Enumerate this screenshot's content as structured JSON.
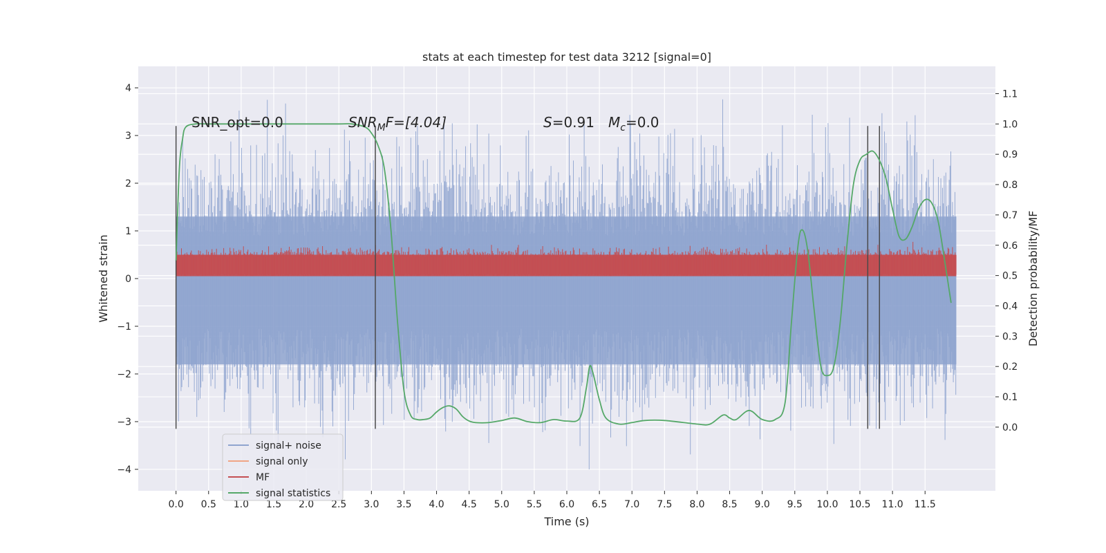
{
  "chart_data": {
    "type": "line",
    "title": "stats at each timestep for test data 3212 [signal=0]",
    "xlabel": "Time (s)",
    "ylabel_left": "Whitened strain",
    "ylabel_right": "Detection probability/MF",
    "xlim": [
      -0.58,
      12.58
    ],
    "ylim_left": [
      -4.45,
      4.45
    ],
    "ylim_right": [
      -0.21,
      1.19
    ],
    "x_ticks": [
      0.0,
      0.5,
      1.0,
      1.5,
      2.0,
      2.5,
      3.0,
      3.5,
      4.0,
      4.5,
      5.0,
      5.5,
      6.0,
      6.5,
      7.0,
      7.5,
      8.0,
      8.5,
      9.0,
      9.5,
      10.0,
      10.5,
      11.0,
      11.5
    ],
    "x_tick_labels": [
      "0.0",
      "0.5",
      "1.0",
      "1.5",
      "2.0",
      "2.5",
      "3.0",
      "3.5",
      "4.0",
      "4.5",
      "5.0",
      "5.5",
      "6.0",
      "6.5",
      "7.0",
      "7.5",
      "8.0",
      "8.5",
      "9.0",
      "9.5",
      "10.0",
      "10.5",
      "11.0",
      "11.5"
    ],
    "y_left_ticks": [
      -4,
      -3,
      -2,
      -1,
      0,
      1,
      2,
      3,
      4
    ],
    "y_left_tick_labels": [
      "−4",
      "−3",
      "−2",
      "−1",
      "0",
      "1",
      "2",
      "3",
      "4"
    ],
    "y_right_ticks": [
      0.0,
      0.1,
      0.2,
      0.3,
      0.4,
      0.5,
      0.6,
      0.7,
      0.8,
      0.9,
      1.0,
      1.1
    ],
    "y_right_tick_labels": [
      "0.0",
      "0.1",
      "0.2",
      "0.3",
      "0.4",
      "0.5",
      "0.6",
      "0.7",
      "0.8",
      "0.9",
      "1.0",
      "1.1"
    ],
    "grid": true,
    "legend_position": "lower-left",
    "legend": [
      {
        "label": "signal+ noise",
        "color": "#8fa4cf"
      },
      {
        "label": "signal only",
        "color": "#f0a584"
      },
      {
        "label": "MF",
        "color": "#c44e52"
      },
      {
        "label": "signal statistics",
        "color": "#55a868"
      }
    ],
    "annotations": {
      "snr_opt": "SNR_opt=0.0",
      "snr_mf_main": "SNR",
      "snr_mf_sub": "M",
      "snr_mf_rest": "F=[4.04]",
      "s_main": "S",
      "s_rest": "=0.91",
      "mc_main": "M",
      "mc_sub": "c",
      "mc_rest": "=0.0"
    },
    "vertical_lines": [
      {
        "x": 0.0,
        "y_from": -3.15,
        "y_to": 3.2
      },
      {
        "x": 3.06,
        "y_from": -3.15,
        "y_to": 3.2
      },
      {
        "x": 10.62,
        "y_from": -3.15,
        "y_to": 3.2
      },
      {
        "x": 10.8,
        "y_from": -3.15,
        "y_to": 3.2
      }
    ],
    "series": [
      {
        "name": "signal+ noise",
        "axis": "left",
        "color": "#8fa4cf",
        "kind": "noise",
        "x_range": [
          0.0,
          11.98
        ],
        "typical_range": [
          -2.0,
          2.0
        ],
        "extremes": [
          -4.0,
          4.1
        ]
      },
      {
        "name": "MF",
        "axis": "left",
        "color": "#c44e52",
        "kind": "band",
        "x_range": [
          0.0,
          11.98
        ],
        "typical_range": [
          0.05,
          0.65
        ],
        "extremes": [
          0.0,
          0.85
        ]
      },
      {
        "name": "signal statistics",
        "axis": "right",
        "color": "#55a868",
        "x": [
          0.0,
          0.05,
          0.1,
          0.15,
          0.3,
          0.5,
          1.0,
          1.5,
          2.0,
          2.5,
          2.7,
          2.9,
          3.0,
          3.1,
          3.2,
          3.3,
          3.4,
          3.5,
          3.6,
          3.7,
          3.8,
          3.9,
          4.0,
          4.1,
          4.2,
          4.3,
          4.4,
          4.5,
          4.6,
          4.8,
          5.0,
          5.2,
          5.4,
          5.6,
          5.8,
          6.0,
          6.2,
          6.3,
          6.35,
          6.4,
          6.5,
          6.6,
          6.8,
          7.0,
          7.2,
          7.5,
          8.0,
          8.2,
          8.4,
          8.5,
          8.6,
          8.8,
          9.0,
          9.2,
          9.35,
          9.45,
          9.55,
          9.62,
          9.7,
          9.8,
          9.9,
          10.0,
          10.1,
          10.2,
          10.3,
          10.4,
          10.5,
          10.6,
          10.7,
          10.8,
          10.9,
          11.0,
          11.1,
          11.2,
          11.3,
          11.4,
          11.5,
          11.6,
          11.7,
          11.8,
          11.9
        ],
        "y": [
          0.55,
          0.85,
          0.95,
          0.99,
          1.0,
          1.0,
          1.0,
          1.0,
          1.0,
          1.0,
          1.0,
          0.99,
          0.97,
          0.93,
          0.85,
          0.65,
          0.35,
          0.12,
          0.04,
          0.025,
          0.025,
          0.03,
          0.05,
          0.065,
          0.07,
          0.06,
          0.035,
          0.02,
          0.015,
          0.015,
          0.022,
          0.03,
          0.018,
          0.015,
          0.025,
          0.02,
          0.03,
          0.13,
          0.2,
          0.18,
          0.09,
          0.03,
          0.01,
          0.015,
          0.022,
          0.022,
          0.01,
          0.01,
          0.04,
          0.03,
          0.025,
          0.055,
          0.025,
          0.025,
          0.08,
          0.35,
          0.6,
          0.65,
          0.58,
          0.38,
          0.2,
          0.17,
          0.2,
          0.35,
          0.6,
          0.8,
          0.88,
          0.9,
          0.91,
          0.88,
          0.82,
          0.72,
          0.63,
          0.62,
          0.66,
          0.72,
          0.75,
          0.74,
          0.68,
          0.55,
          0.41
        ]
      }
    ]
  }
}
